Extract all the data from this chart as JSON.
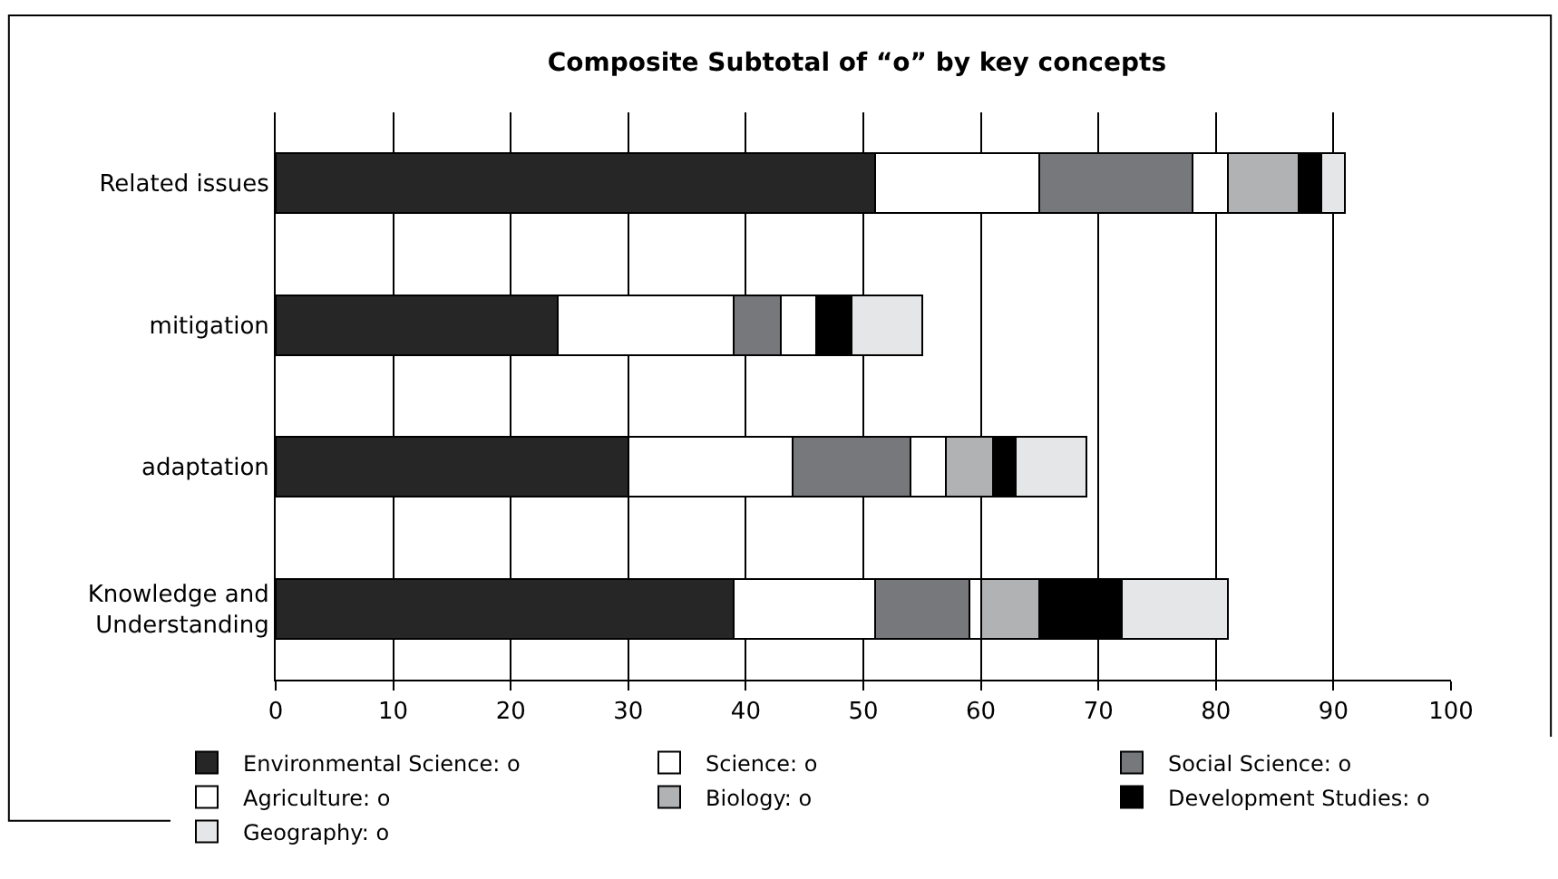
{
  "chart_data": {
    "type": "bar",
    "orientation": "horizontal",
    "stacked": true,
    "title": "Composite Subtotal of “o” by key concepts",
    "categories": [
      "Related issues",
      "mitigation",
      "adaptation",
      "Knowledge and\nUnderstanding"
    ],
    "series": [
      {
        "name": "Environmental Science: o",
        "color": "#262626",
        "values": [
          51,
          24,
          30,
          39
        ]
      },
      {
        "name": "Science: o",
        "color": "#ffffff",
        "values": [
          14,
          15,
          14,
          12
        ]
      },
      {
        "name": "Social Science: o",
        "color": "#77787b",
        "values": [
          13,
          4,
          10,
          8
        ]
      },
      {
        "name": "Agriculture: o",
        "color": "#ffffff",
        "values": [
          3,
          3,
          3,
          1
        ]
      },
      {
        "name": "Biology: o",
        "color": "#b1b2b4",
        "values": [
          6,
          0,
          4,
          5
        ]
      },
      {
        "name": "Development Studies: o",
        "color": "#000000",
        "values": [
          2,
          3,
          2,
          7
        ]
      },
      {
        "name": "Geography: o",
        "color": "#e5e6e7",
        "values": [
          2,
          6,
          6,
          9
        ]
      }
    ],
    "xlim": [
      0,
      100
    ],
    "xticks": [
      0,
      10,
      20,
      30,
      40,
      50,
      60,
      70,
      80,
      90,
      100
    ],
    "grid": "x",
    "legend": "bottom"
  }
}
